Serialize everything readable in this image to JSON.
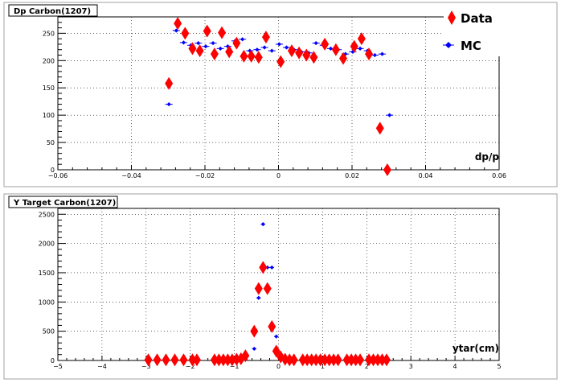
{
  "chart_data": [
    {
      "type": "scatter",
      "title": "Dp  Carbon(1207)",
      "xlabel": "dp/p",
      "ylabel": "",
      "xlim": [
        -0.06,
        0.06
      ],
      "ylim": [
        0,
        280
      ],
      "grid": true,
      "legend_position": "top-right",
      "x_ticks": [
        -0.06,
        -0.04,
        -0.02,
        0,
        0.02,
        0.04,
        0.06
      ],
      "x_tick_labels": [
        "−0.06",
        "−0.04",
        "−0.02",
        "0",
        "0.02",
        "0.04",
        "0.06"
      ],
      "y_ticks": [
        0,
        50,
        100,
        150,
        200,
        250
      ],
      "y_tick_labels": [
        "0",
        "50",
        "100",
        "150",
        "200",
        "250"
      ],
      "series": [
        {
          "name": "Data",
          "color": "#ff0000",
          "marker": "diamond",
          "x": [
            -0.0298,
            -0.0274,
            -0.0254,
            -0.0234,
            -0.0214,
            -0.0194,
            -0.0174,
            -0.0154,
            -0.0134,
            -0.0114,
            -0.0094,
            -0.0074,
            -0.0054,
            -0.0034,
            0.0006,
            0.0036,
            0.0056,
            0.0076,
            0.0096,
            0.0126,
            0.0156,
            0.0176,
            0.0206,
            0.0226,
            0.0246,
            0.0276,
            0.0296
          ],
          "y": [
            158,
            268,
            250,
            222,
            218,
            254,
            212,
            251,
            216,
            232,
            208,
            208,
            206,
            243,
            198,
            218,
            214,
            210,
            206,
            230,
            220,
            204,
            226,
            240,
            212,
            76,
            0
          ]
        },
        {
          "name": "MC",
          "color": "#0000ff",
          "marker": "small-diamond",
          "x": [
            -0.0298,
            -0.0278,
            -0.0258,
            -0.0238,
            -0.0218,
            -0.0198,
            -0.0178,
            -0.0158,
            -0.0138,
            -0.0118,
            -0.0098,
            -0.0078,
            -0.0058,
            -0.0038,
            -0.0018,
            0.0002,
            0.0022,
            0.0042,
            0.0062,
            0.0082,
            0.0102,
            0.0122,
            0.0142,
            0.0162,
            0.0182,
            0.0202,
            0.0222,
            0.0242,
            0.0262,
            0.0282,
            0.0302
          ],
          "y": [
            120,
            255,
            233,
            228,
            232,
            226,
            232,
            222,
            226,
            236,
            239,
            218,
            220,
            224,
            218,
            230,
            224,
            220,
            216,
            214,
            232,
            228,
            222,
            220,
            212,
            216,
            222,
            218,
            210,
            212,
            100
          ]
        }
      ]
    },
    {
      "type": "scatter",
      "title": "Y Target Carbon(1207)",
      "xlabel": "ytar(cm)",
      "ylabel": "",
      "xlim": [
        -5,
        5
      ],
      "ylim": [
        0,
        2600
      ],
      "grid": true,
      "x_ticks": [
        -5,
        -4,
        -3,
        -2,
        -1,
        0,
        1,
        2,
        3,
        4,
        5
      ],
      "x_tick_labels": [
        "−5",
        "−4",
        "−3",
        "−2",
        "−1",
        "0",
        "1",
        "2",
        "3",
        "4",
        "5"
      ],
      "y_ticks": [
        0,
        500,
        1000,
        1500,
        2000,
        2500
      ],
      "y_tick_labels": [
        "0",
        "500",
        "1000",
        "1500",
        "2000",
        "2500"
      ],
      "series": [
        {
          "name": "Data",
          "color": "#ff0000",
          "marker": "diamond",
          "x": [
            -2.95,
            -2.75,
            -2.55,
            -2.35,
            -2.15,
            -1.95,
            -1.85,
            -1.45,
            -1.35,
            -1.25,
            -1.15,
            -1.05,
            -0.95,
            -0.85,
            -0.75,
            -0.55,
            -0.45,
            -0.35,
            -0.25,
            -0.15,
            -0.05,
            0.05,
            0.15,
            0.25,
            0.35,
            0.55,
            0.65,
            0.75,
            0.85,
            0.95,
            1.05,
            1.15,
            1.25,
            1.35,
            1.55,
            1.65,
            1.75,
            1.85,
            2.05,
            2.15,
            2.25,
            2.35,
            2.45
          ],
          "y": [
            10,
            10,
            10,
            10,
            10,
            10,
            10,
            10,
            10,
            10,
            10,
            10,
            20,
            30,
            80,
            500,
            1230,
            1590,
            1230,
            580,
            160,
            60,
            20,
            10,
            10,
            10,
            10,
            10,
            10,
            10,
            10,
            10,
            10,
            10,
            10,
            10,
            10,
            10,
            10,
            10,
            10,
            10,
            10
          ]
        },
        {
          "name": "MC",
          "color": "#0000ff",
          "marker": "small-diamond",
          "x": [
            -0.85,
            -0.75,
            -0.55,
            -0.45,
            -0.35,
            -0.25,
            -0.15,
            -0.05,
            0.05
          ],
          "y": [
            10,
            20,
            200,
            1070,
            2330,
            1590,
            1590,
            410,
            20
          ]
        }
      ]
    }
  ]
}
